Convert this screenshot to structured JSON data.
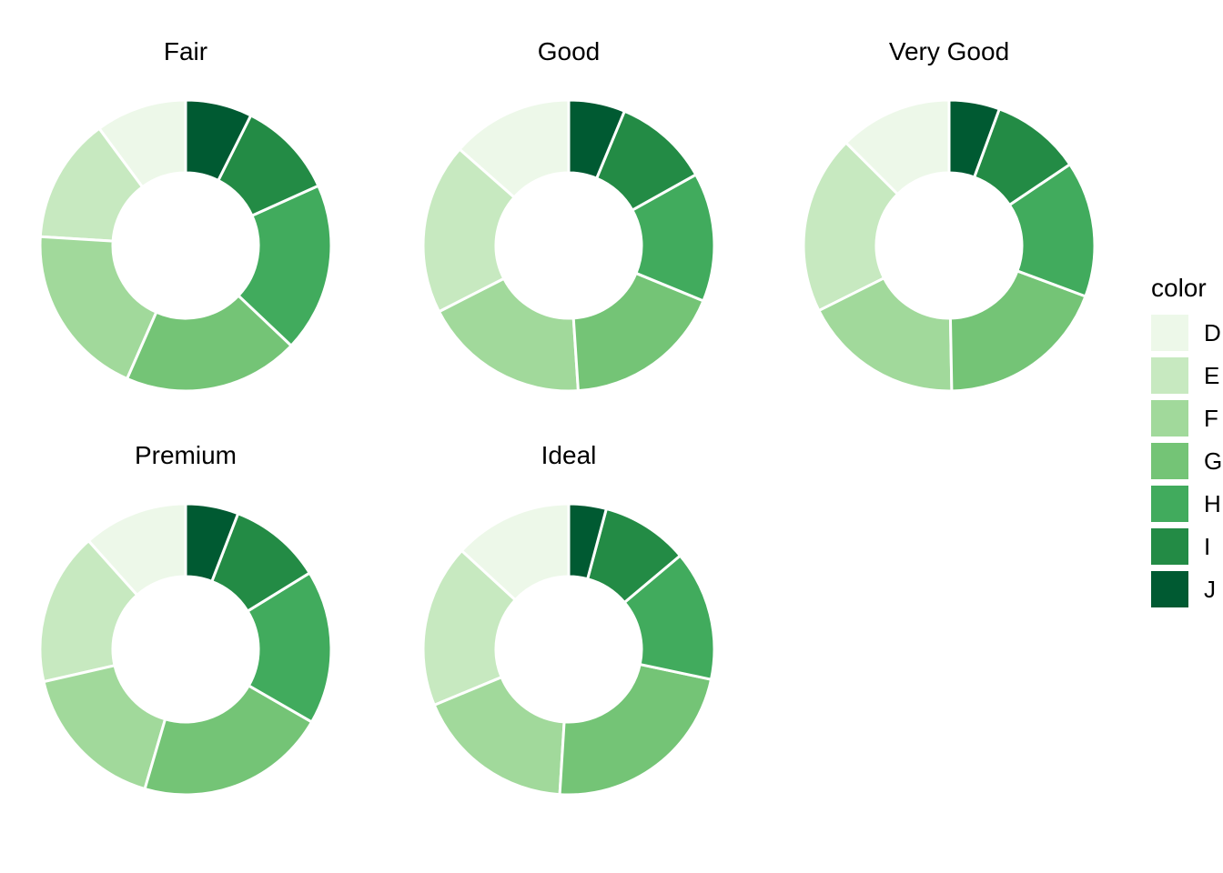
{
  "figure": {
    "background": "#ffffff"
  },
  "legend": {
    "title": "color",
    "position": "right",
    "entries": [
      {
        "label": "D",
        "color": "#edf8e9"
      },
      {
        "label": "E",
        "color": "#c7e9c0"
      },
      {
        "label": "F",
        "color": "#a1d99b"
      },
      {
        "label": "G",
        "color": "#74c476"
      },
      {
        "label": "H",
        "color": "#41ab5d"
      },
      {
        "label": "I",
        "color": "#238b45"
      },
      {
        "label": "J",
        "color": "#005a32"
      }
    ]
  },
  "chart_data": {
    "type": "pie",
    "subtype": "donut",
    "categories": [
      "D",
      "E",
      "F",
      "G",
      "H",
      "I",
      "J"
    ],
    "colors": [
      "#edf8e9",
      "#c7e9c0",
      "#a1d99b",
      "#74c476",
      "#41ab5d",
      "#238b45",
      "#005a32"
    ],
    "slice_border_color": "#ffffff",
    "start_angle": "top",
    "direction": "counterclockwise",
    "inner_radius_ratio": 0.5,
    "legend_position": "right",
    "panels": [
      {
        "title": "Fair",
        "values_pct": [
          10.12,
          13.91,
          19.38,
          19.5,
          18.82,
          10.87,
          7.39
        ]
      },
      {
        "title": "Good",
        "values_pct": [
          13.49,
          19.02,
          18.53,
          17.75,
          14.31,
          10.64,
          6.26
        ]
      },
      {
        "title": "Very Good",
        "values_pct": [
          12.52,
          19.86,
          17.91,
          19.03,
          15.1,
          9.97,
          5.61
        ]
      },
      {
        "title": "Premium",
        "values_pct": [
          11.62,
          16.95,
          16.9,
          21.2,
          17.11,
          10.35,
          5.86
        ]
      },
      {
        "title": "Ideal",
        "values_pct": [
          13.15,
          18.11,
          17.75,
          22.66,
          14.45,
          9.71,
          4.16
        ]
      }
    ]
  }
}
